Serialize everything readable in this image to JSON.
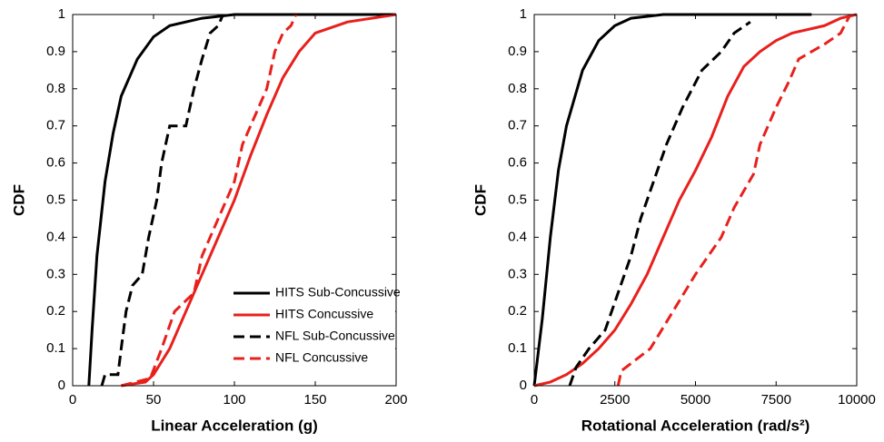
{
  "chart_data": [
    {
      "type": "line",
      "xlabel": "Linear Acceleration (g)",
      "ylabel": "CDF",
      "xlim": [
        0,
        200
      ],
      "ylim": [
        0,
        1
      ],
      "xticks": [
        0,
        50,
        100,
        150,
        200
      ],
      "yticks": [
        0,
        0.1,
        0.2,
        0.3,
        0.4,
        0.5,
        0.6,
        0.7,
        0.8,
        0.9,
        1
      ],
      "legend": "lower right",
      "series": [
        {
          "name": "HITS Sub-Concussive",
          "color": "#000000",
          "dash": false,
          "x": [
            10,
            12,
            15,
            20,
            25,
            30,
            40,
            50,
            60,
            80,
            100,
            200
          ],
          "values": [
            0,
            0.15,
            0.35,
            0.55,
            0.68,
            0.78,
            0.88,
            0.94,
            0.97,
            0.99,
            1,
            1
          ]
        },
        {
          "name": "HITS Concussive",
          "color": "#e8201c",
          "dash": false,
          "x": [
            30,
            45,
            50,
            60,
            70,
            80,
            90,
            100,
            110,
            120,
            130,
            140,
            150,
            170,
            200
          ],
          "values": [
            0,
            0.01,
            0.03,
            0.1,
            0.2,
            0.3,
            0.4,
            0.5,
            0.62,
            0.73,
            0.83,
            0.9,
            0.95,
            0.98,
            1
          ]
        },
        {
          "name": "NFL Sub-Concussive",
          "color": "#000000",
          "dash": true,
          "x": [
            18,
            20,
            28,
            30,
            33,
            37,
            43,
            47,
            52,
            55,
            60,
            70,
            75,
            80,
            85,
            90,
            93
          ],
          "values": [
            0,
            0.03,
            0.03,
            0.1,
            0.2,
            0.27,
            0.3,
            0.4,
            0.5,
            0.6,
            0.7,
            0.7,
            0.8,
            0.88,
            0.95,
            0.97,
            1
          ]
        },
        {
          "name": "NFL Concussive",
          "color": "#e8201c",
          "dash": true,
          "x": [
            30,
            48,
            55,
            63,
            75,
            80,
            90,
            100,
            105,
            110,
            120,
            125,
            130,
            135,
            138
          ],
          "values": [
            0,
            0.02,
            0.1,
            0.2,
            0.25,
            0.35,
            0.45,
            0.55,
            0.65,
            0.7,
            0.8,
            0.9,
            0.95,
            0.97,
            1
          ]
        }
      ]
    },
    {
      "type": "line",
      "xlabel": "Rotational Acceleration (rad/s²)",
      "ylabel": "CDF",
      "xlim": [
        0,
        10000
      ],
      "ylim": [
        0,
        1
      ],
      "xticks": [
        0,
        2500,
        5000,
        7500,
        10000
      ],
      "yticks": [
        0,
        0.1,
        0.2,
        0.3,
        0.4,
        0.5,
        0.6,
        0.7,
        0.8,
        0.9,
        1
      ],
      "series": [
        {
          "color": "#000000",
          "dash": false,
          "x": [
            0,
            250,
            500,
            750,
            1000,
            1500,
            2000,
            2500,
            3000,
            4000,
            8600
          ],
          "values": [
            0,
            0.18,
            0.4,
            0.58,
            0.7,
            0.85,
            0.93,
            0.97,
            0.99,
            1,
            1
          ]
        },
        {
          "color": "#e8201c",
          "dash": false,
          "x": [
            0,
            500,
            1000,
            1500,
            2000,
            2500,
            3000,
            3500,
            4000,
            4500,
            5000,
            5500,
            6000,
            6500,
            7000,
            7500,
            8000,
            9000,
            9500,
            10000
          ],
          "values": [
            0,
            0.01,
            0.03,
            0.06,
            0.1,
            0.15,
            0.22,
            0.3,
            0.4,
            0.5,
            0.58,
            0.67,
            0.78,
            0.86,
            0.9,
            0.93,
            0.95,
            0.97,
            0.99,
            1
          ]
        },
        {
          "color": "#000000",
          "dash": true,
          "x": [
            1100,
            1300,
            1700,
            2200,
            2600,
            3000,
            3300,
            3700,
            4100,
            4600,
            5200,
            5800,
            6200,
            6700
          ],
          "values": [
            0,
            0.05,
            0.1,
            0.15,
            0.25,
            0.35,
            0.45,
            0.55,
            0.65,
            0.75,
            0.85,
            0.9,
            0.95,
            0.98
          ]
        },
        {
          "color": "#e8201c",
          "dash": true,
          "x": [
            2600,
            2700,
            3600,
            4300,
            5000,
            5800,
            6200,
            6800,
            7000,
            7500,
            7900,
            8200,
            9000,
            9500,
            9800
          ],
          "values": [
            0,
            0.04,
            0.1,
            0.2,
            0.3,
            0.4,
            0.48,
            0.57,
            0.65,
            0.75,
            0.82,
            0.88,
            0.92,
            0.95,
            1
          ]
        }
      ]
    }
  ]
}
